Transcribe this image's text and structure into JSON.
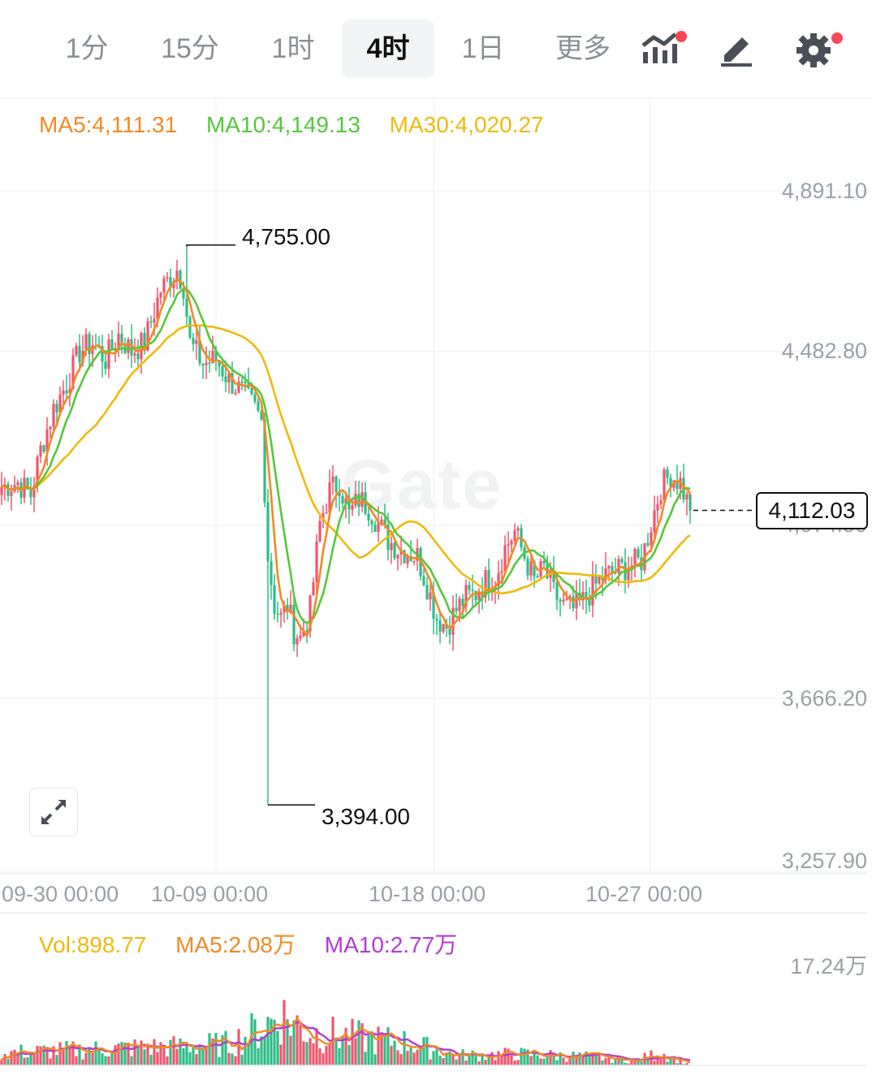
{
  "tabs": [
    {
      "label": "1分"
    },
    {
      "label": "15分"
    },
    {
      "label": "1时"
    },
    {
      "label": "4时"
    },
    {
      "label": "1日"
    },
    {
      "label": "更多"
    }
  ],
  "active_tab": "4时",
  "icons": [
    "indicator-icon",
    "draw-icon",
    "settings-icon",
    "expand-icon"
  ],
  "colors": {
    "up": "#f0566e",
    "down": "#2ebd85",
    "ma5": "#f08a24",
    "ma10": "#52c93b",
    "ma30": "#f0b90b",
    "vol": "#f0b90b",
    "vol_ma10": "#b43ad6"
  },
  "legend": {
    "ma5": "MA5:4,111.31",
    "ma10": "MA10:4,149.13",
    "ma30": "MA30:4,020.27"
  },
  "volume_legend": {
    "vol": "Vol:898.77",
    "ma5": "MA5:2.08万",
    "ma10": "MA10:2.77万"
  },
  "watermark": "Gate",
  "chart_data": [
    {
      "type": "candlestick",
      "title": "",
      "y_ticks": [
        "4,891.10",
        "4,482.80",
        "4,074.50",
        "3,666.20",
        "3,257.90"
      ],
      "ylim": [
        3257.9,
        4891.1
      ],
      "x_ticks": [
        "09-30 00:00",
        "10-09 00:00",
        "10-18 00:00",
        "10-27 00:00"
      ],
      "high_label": "4,755.00",
      "low_label": "3,394.00",
      "last_price": "4,112.03",
      "high": 4755.0,
      "low": 3394.0,
      "last": 4112.03,
      "close_anchors": [
        [
          0,
          4170
        ],
        [
          5,
          4180
        ],
        [
          9,
          4150
        ],
        [
          12,
          4260
        ],
        [
          16,
          4360
        ],
        [
          20,
          4420
        ],
        [
          24,
          4500
        ],
        [
          28,
          4520
        ],
        [
          32,
          4480
        ],
        [
          36,
          4540
        ],
        [
          40,
          4500
        ],
        [
          44,
          4520
        ],
        [
          49,
          4650
        ],
        [
          54,
          4700
        ],
        [
          56,
          4660
        ],
        [
          58,
          4520
        ],
        [
          62,
          4470
        ],
        [
          66,
          4480
        ],
        [
          70,
          4430
        ],
        [
          74,
          4400
        ],
        [
          78,
          4360
        ],
        [
          80,
          4330
        ],
        [
          82,
          4000
        ],
        [
          84,
          3880
        ],
        [
          86,
          3850
        ],
        [
          88,
          3880
        ],
        [
          90,
          3820
        ],
        [
          92,
          3800
        ],
        [
          95,
          3870
        ],
        [
          98,
          4080
        ],
        [
          101,
          4160
        ],
        [
          104,
          4180
        ],
        [
          107,
          4100
        ],
        [
          110,
          4140
        ],
        [
          113,
          4120
        ],
        [
          116,
          4080
        ],
        [
          119,
          4040
        ],
        [
          122,
          4020
        ],
        [
          125,
          4010
        ],
        [
          128,
          4000
        ],
        [
          131,
          3930
        ],
        [
          134,
          3850
        ],
        [
          137,
          3830
        ],
        [
          140,
          3870
        ],
        [
          143,
          3900
        ],
        [
          146,
          3910
        ],
        [
          149,
          3940
        ],
        [
          152,
          3950
        ],
        [
          155,
          4020
        ],
        [
          158,
          4060
        ],
        [
          161,
          4000
        ],
        [
          164,
          3940
        ],
        [
          167,
          3970
        ],
        [
          170,
          3910
        ],
        [
          173,
          3880
        ],
        [
          176,
          3870
        ],
        [
          179,
          3890
        ],
        [
          182,
          3920
        ],
        [
          185,
          3950
        ],
        [
          188,
          3960
        ],
        [
          191,
          3970
        ],
        [
          194,
          3980
        ],
        [
          197,
          3990
        ],
        [
          200,
          4080
        ],
        [
          203,
          4170
        ],
        [
          206,
          4200
        ],
        [
          209,
          4180
        ],
        [
          212,
          4112
        ]
      ],
      "ma5_close": 4111.31,
      "ma10_close": 4149.13,
      "ma30_close": 4020.27
    },
    {
      "type": "bar",
      "title": "",
      "series_name": "Vol",
      "y_ticks": [
        "17.24万"
      ],
      "ylim": [
        0,
        172400
      ],
      "last_volume": 898.77,
      "volume_anchors": [
        [
          0,
          20000
        ],
        [
          20,
          24000
        ],
        [
          40,
          28000
        ],
        [
          55,
          30000
        ],
        [
          70,
          34000
        ],
        [
          80,
          60000
        ],
        [
          86,
          80000
        ],
        [
          95,
          52000
        ],
        [
          110,
          44000
        ],
        [
          125,
          36000
        ],
        [
          140,
          16000
        ],
        [
          160,
          18000
        ],
        [
          180,
          14000
        ],
        [
          195,
          8000
        ],
        [
          203,
          20000
        ],
        [
          212,
          900
        ]
      ],
      "vol_ma5": 20800,
      "vol_ma10": 27700
    }
  ]
}
